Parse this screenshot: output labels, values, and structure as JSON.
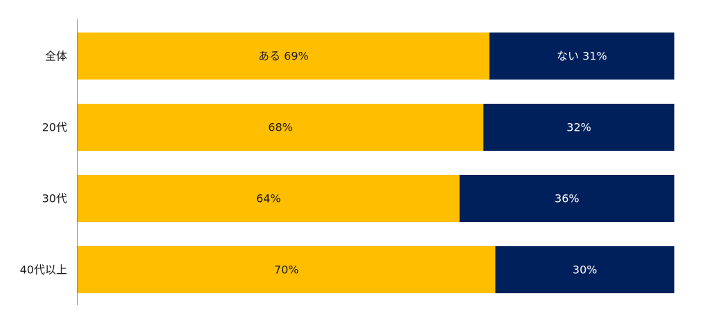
{
  "chart_data": {
    "type": "bar",
    "orientation": "horizontal",
    "stacked": "percent",
    "categories": [
      "全体",
      "20代",
      "30代",
      "40代以上"
    ],
    "series": [
      {
        "name": "ある",
        "color": "#FFBE00",
        "label_color": "#1a1a1a",
        "values": [
          69,
          68,
          64,
          70
        ],
        "value_labels": [
          "ある 69%",
          "68%",
          "64%",
          "70%"
        ]
      },
      {
        "name": "ない",
        "color": "#00205B",
        "label_color": "#ffffff",
        "values": [
          31,
          32,
          36,
          30
        ],
        "value_labels": [
          "ない 31%",
          "32%",
          "36%",
          "30%"
        ]
      }
    ],
    "xlim": [
      0,
      100
    ],
    "grid": false,
    "legend": "none"
  }
}
